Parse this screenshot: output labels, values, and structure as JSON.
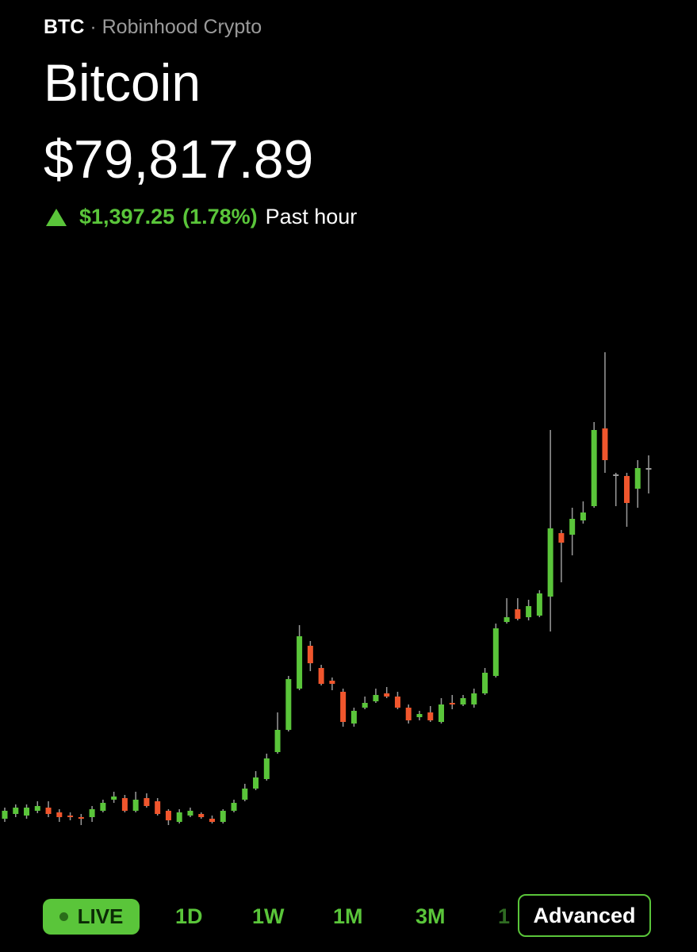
{
  "header": {
    "ticker": "BTC",
    "separator": "·",
    "source": "Robinhood Crypto",
    "name": "Bitcoin",
    "price": "$79,817.89",
    "change": "$1,397.25",
    "change_percent": "(1.78%)",
    "period": "Past hour"
  },
  "chart_data": {
    "type": "candlestick",
    "up_color": "#5ac53a",
    "down_color": "#f0562d",
    "flat_color": "#9a9a9a",
    "ylim": [
      0,
      700
    ],
    "open": [
      68,
      74,
      72,
      78,
      82,
      76,
      72,
      70,
      70,
      78,
      92,
      94,
      78,
      94,
      90,
      78,
      64,
      72,
      74,
      68,
      64,
      78,
      92,
      106,
      118,
      152,
      180,
      232,
      286,
      258,
      242,
      228,
      188,
      208,
      216,
      226,
      222,
      208,
      196,
      202,
      190,
      214,
      212,
      212,
      226,
      248,
      316,
      332,
      322,
      324,
      348,
      428,
      426,
      444,
      462,
      560,
      502,
      500,
      484,
      510
    ],
    "high": [
      82,
      86,
      86,
      90,
      90,
      80,
      76,
      74,
      84,
      92,
      102,
      98,
      102,
      100,
      94,
      80,
      80,
      82,
      76,
      72,
      80,
      92,
      112,
      128,
      150,
      202,
      248,
      312,
      292,
      262,
      246,
      232,
      208,
      222,
      232,
      234,
      228,
      212,
      204,
      210,
      220,
      224,
      224,
      232,
      258,
      314,
      346,
      346,
      344,
      356,
      558,
      432,
      460,
      468,
      568,
      656,
      504,
      504,
      520,
      526
    ],
    "low": [
      64,
      70,
      68,
      75,
      70,
      64,
      66,
      60,
      64,
      76,
      88,
      76,
      76,
      82,
      72,
      60,
      62,
      70,
      68,
      62,
      62,
      76,
      90,
      104,
      116,
      150,
      178,
      230,
      254,
      236,
      230,
      184,
      184,
      206,
      214,
      220,
      206,
      188,
      192,
      190,
      188,
      206,
      210,
      208,
      224,
      246,
      314,
      318,
      318,
      322,
      304,
      366,
      400,
      440,
      460,
      504,
      462,
      436,
      460,
      478
    ],
    "close": [
      78,
      82,
      82,
      84,
      74,
      70,
      70,
      68,
      80,
      88,
      96,
      78,
      92,
      84,
      74,
      66,
      76,
      78,
      70,
      64,
      78,
      88,
      106,
      120,
      144,
      180,
      244,
      298,
      264,
      238,
      238,
      190,
      204,
      214,
      224,
      222,
      208,
      192,
      200,
      192,
      212,
      212,
      220,
      226,
      252,
      308,
      322,
      320,
      336,
      352,
      434,
      416,
      446,
      454,
      558,
      520,
      502,
      466,
      510,
      510
    ]
  },
  "tabs": [
    "LIVE",
    "1D",
    "1W",
    "1M",
    "3M",
    "1"
  ],
  "advanced": "Advanced"
}
